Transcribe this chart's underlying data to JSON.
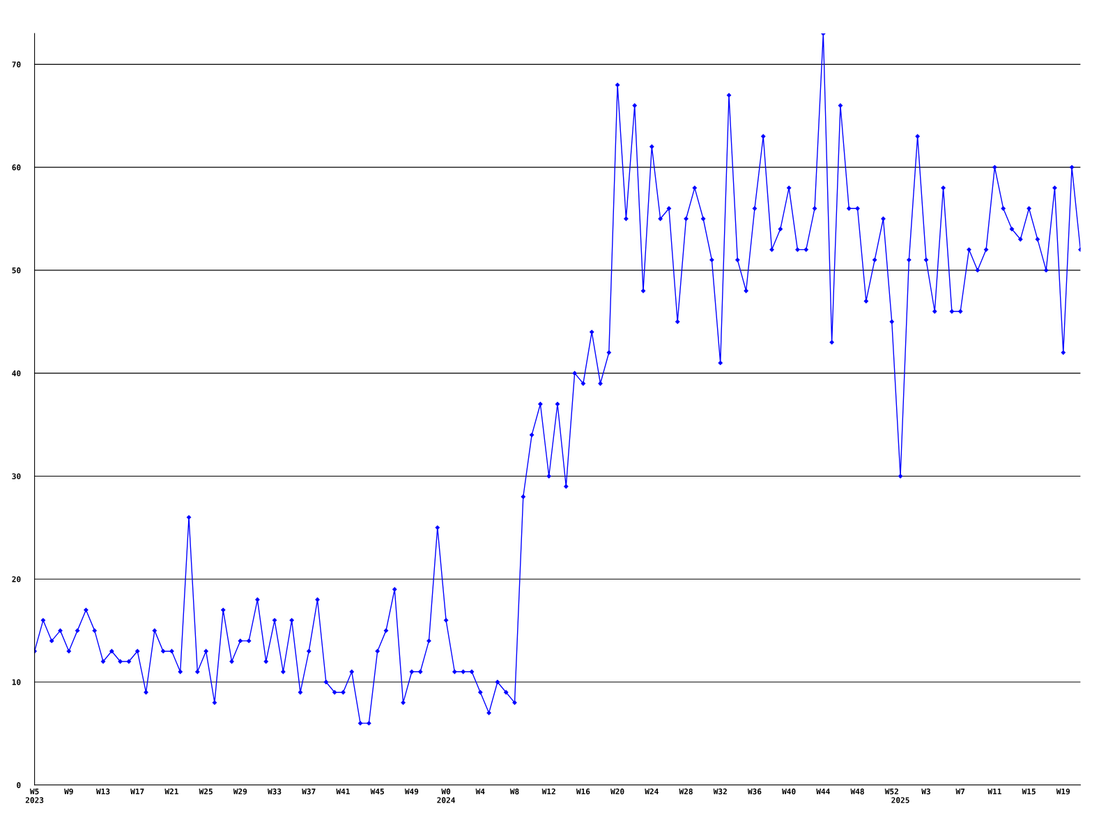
{
  "chart_data": {
    "type": "line",
    "categories": [
      "W5\n2023",
      null,
      null,
      null,
      "W9",
      null,
      null,
      null,
      "W13",
      null,
      null,
      null,
      "W17",
      null,
      null,
      null,
      "W21",
      null,
      null,
      null,
      "W25",
      null,
      null,
      null,
      "W29",
      null,
      null,
      null,
      "W33",
      null,
      null,
      null,
      "W37",
      null,
      null,
      null,
      "W41",
      null,
      null,
      null,
      "W45",
      null,
      null,
      null,
      "W49",
      null,
      null,
      null,
      "W0\n2024",
      null,
      null,
      null,
      "W4",
      null,
      null,
      null,
      "W8",
      null,
      null,
      null,
      "W12",
      null,
      null,
      null,
      "W16",
      null,
      null,
      null,
      "W20",
      null,
      null,
      null,
      "W24",
      null,
      null,
      null,
      "W28",
      null,
      null,
      null,
      "W32",
      null,
      null,
      null,
      "W36",
      null,
      null,
      null,
      "W40",
      null,
      null,
      null,
      "W44",
      null,
      null,
      null,
      "W48",
      null,
      null,
      null,
      "W52",
      "\n2025",
      null,
      null,
      "W3",
      null,
      null,
      null,
      "W7",
      null,
      null,
      null,
      "W11",
      null,
      null,
      null,
      "W15",
      null,
      null,
      null,
      "W19",
      null,
      null
    ],
    "series": [
      {
        "color": "#0000ff",
        "values": [
          13,
          16,
          14,
          15,
          13,
          15,
          17,
          15,
          12,
          13,
          12,
          12,
          13,
          9,
          15,
          13,
          13,
          11,
          26,
          11,
          13,
          8,
          17,
          12,
          14,
          14,
          18,
          12,
          16,
          11,
          16,
          9,
          13,
          18,
          10,
          9,
          9,
          11,
          6,
          6,
          13,
          15,
          19,
          8,
          11,
          11,
          14,
          25,
          16,
          11,
          11,
          11,
          9,
          7,
          10,
          9,
          8,
          28,
          34,
          37,
          30,
          37,
          29,
          40,
          39,
          44,
          39,
          42,
          68,
          55,
          66,
          48,
          62,
          55,
          56,
          45,
          55,
          58,
          55,
          51,
          41,
          67,
          51,
          48,
          56,
          63,
          52,
          54,
          58,
          52,
          52,
          56,
          73,
          43,
          66,
          56,
          56,
          47,
          51,
          55,
          45,
          30,
          51,
          63,
          51,
          46,
          58,
          46,
          46,
          52,
          50,
          52,
          60,
          56,
          54,
          53,
          56,
          53,
          50,
          58,
          42,
          60,
          52
        ]
      }
    ],
    "ylim": [
      0,
      73
    ],
    "yticks": [
      0,
      10,
      20,
      30,
      40,
      50,
      60,
      70
    ],
    "grid": "y",
    "marker": "diamond",
    "line_style": "solid"
  }
}
